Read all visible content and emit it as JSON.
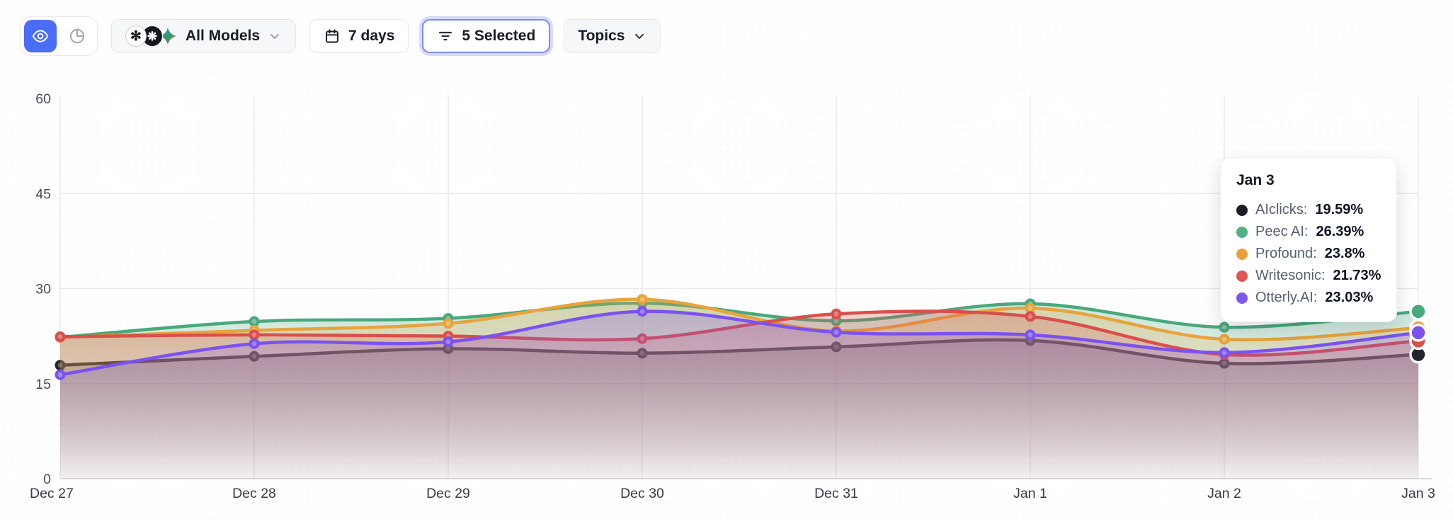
{
  "toolbar": {
    "view_toggle": {
      "active_view": "visibility",
      "icons": [
        "eye-icon",
        "pie-chart-icon"
      ],
      "active_color": "#4a6cf7"
    },
    "models_button": {
      "label": "All Models",
      "icons": [
        "openai-icon",
        "dark-ai-model-icon",
        "gemini-icon"
      ]
    },
    "range_button": {
      "label": "7 days",
      "icon": "calendar-icon"
    },
    "filter_button": {
      "label": "5 Selected",
      "icon": "filter-lines-icon",
      "focus_ring_color": "#7d88ee"
    },
    "topics_button": {
      "label": "Topics",
      "icon": "chevron-down-icon"
    }
  },
  "chart_data": {
    "type": "line",
    "area": true,
    "grid": true,
    "smooth": true,
    "categories": [
      "Dec 27",
      "Dec 28",
      "Dec 29",
      "Dec 30",
      "Dec 31",
      "Jan 1",
      "Jan 2",
      "Jan 3"
    ],
    "series": [
      {
        "name": "AIclicks",
        "color": "#22252d",
        "values": [
          17.9,
          19.3,
          20.5,
          19.8,
          20.8,
          21.8,
          18.2,
          19.59
        ]
      },
      {
        "name": "Peec AI",
        "color": "#49a87c",
        "values": [
          22.3,
          24.8,
          25.3,
          27.7,
          24.9,
          27.6,
          23.9,
          26.39
        ]
      },
      {
        "name": "Profound",
        "color": "#e8a33c",
        "values": [
          22.3,
          23.4,
          24.5,
          28.3,
          23.3,
          26.9,
          22.0,
          23.8
        ]
      },
      {
        "name": "Writesonic",
        "color": "#d94f4a",
        "values": [
          22.4,
          22.7,
          22.5,
          22.1,
          26.0,
          25.6,
          19.6,
          21.73
        ]
      },
      {
        "name": "Otterly.AI",
        "color": "#7b52f0",
        "values": [
          16.4,
          21.3,
          21.6,
          26.4,
          23.1,
          22.7,
          19.9,
          23.03
        ]
      }
    ],
    "title": "",
    "xlabel": "",
    "ylabel": "",
    "ylim": [
      0,
      60
    ],
    "yticks": [
      0,
      15,
      30,
      45,
      60
    ],
    "legend_position": "tooltip-only"
  },
  "tooltip": {
    "title": "Jan 3",
    "rows": [
      {
        "name": "AIclicks:",
        "value": "19.59%",
        "color": "#1b1e24"
      },
      {
        "name": "Peec AI:",
        "value": "26.39%",
        "color": "#4fb185"
      },
      {
        "name": "Profound:",
        "value": "23.8%",
        "color": "#e9a23b"
      },
      {
        "name": "Writesonic:",
        "value": "21.73%",
        "color": "#e05555"
      },
      {
        "name": "Otterly.AI:",
        "value": "23.03%",
        "color": "#8257f0"
      }
    ]
  },
  "axis": {
    "x_label_color": "#333a45",
    "y_label_color": "#464c58",
    "grid_color": "#e9e9ee"
  }
}
